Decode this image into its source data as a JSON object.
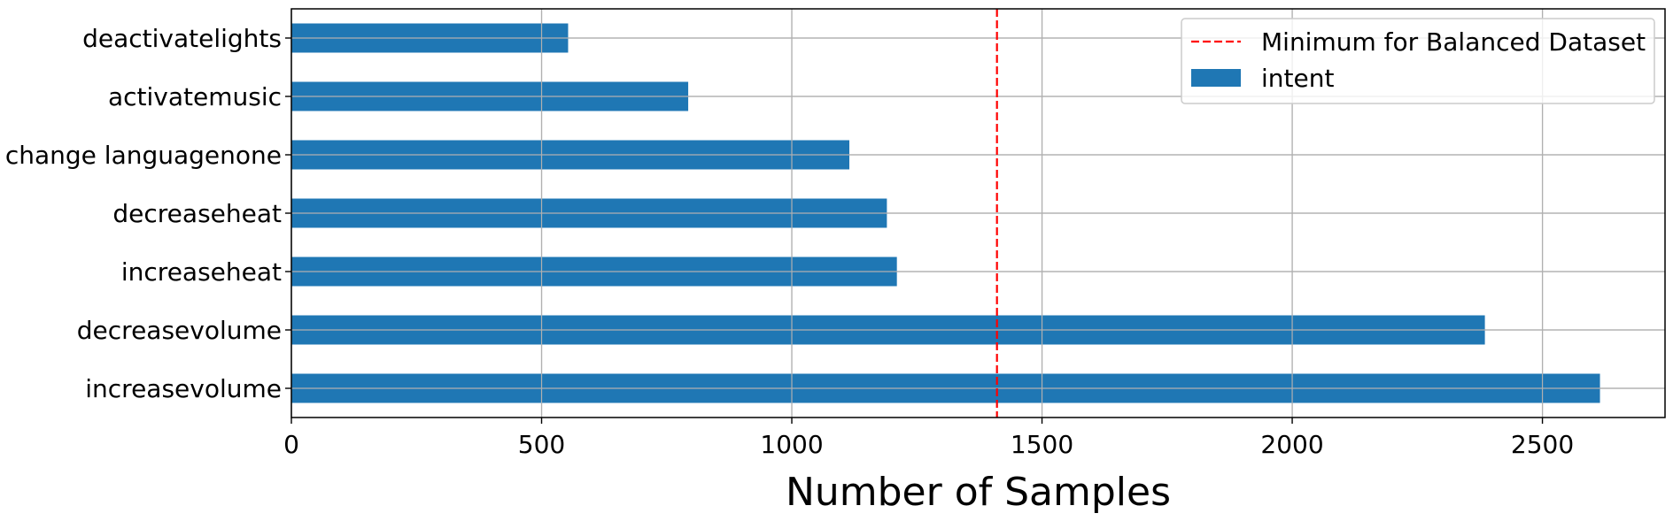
{
  "chart_data": {
    "type": "bar",
    "orientation": "horizontal",
    "categories": [
      "increasevolume",
      "decreasevolume",
      "increaseheat",
      "decreaseheat",
      "change languagenone",
      "activatemusic",
      "deactivatelights"
    ],
    "series": [
      {
        "name": "intent",
        "values": [
          2615,
          2385,
          1210,
          1190,
          1115,
          793,
          553
        ],
        "color": "#1f77b4"
      }
    ],
    "reference_line": {
      "label": "Minimum for Balanced Dataset",
      "value": 1410,
      "color": "#ff0000",
      "style": "dashed"
    },
    "xlabel": "Number of Samples",
    "ylabel": "",
    "xlim": [
      0,
      2745
    ],
    "xticks": [
      0,
      500,
      1000,
      1500,
      2000,
      2500
    ],
    "grid": true,
    "legend_position": "top-right"
  }
}
